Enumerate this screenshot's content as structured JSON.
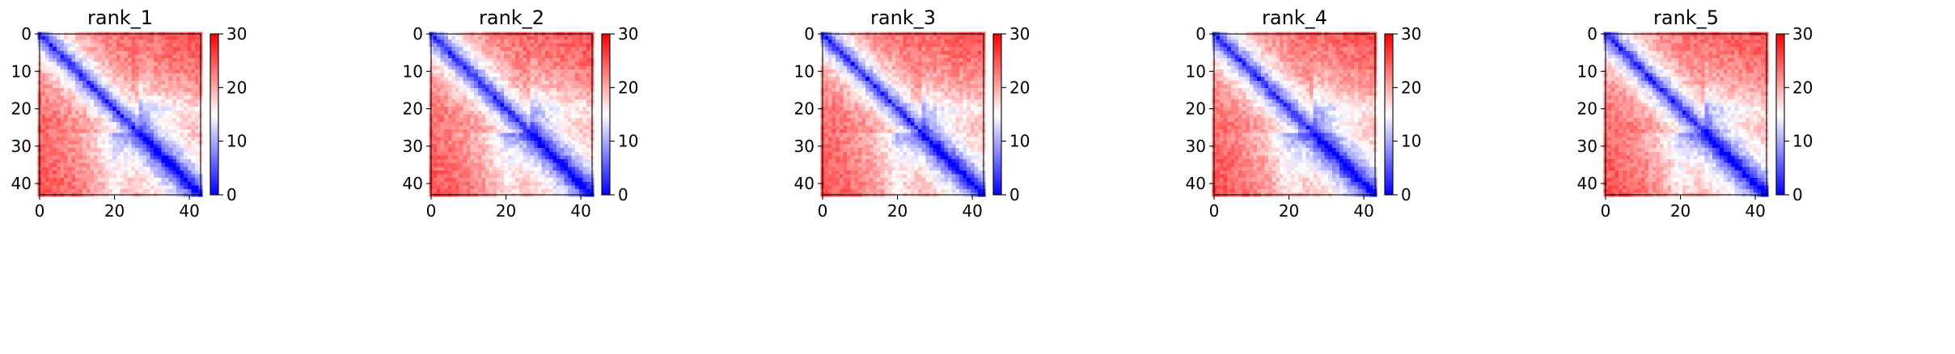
{
  "chart_data": [
    {
      "type": "heatmap",
      "title": "rank_1",
      "matrix_size": 44,
      "band_width": 5.2,
      "block_boundary": 27,
      "xlim": [
        0,
        43
      ],
      "ylim": [
        43,
        0
      ],
      "xticks": [
        0,
        20,
        40
      ],
      "yticks": [
        0,
        10,
        20,
        30,
        40
      ],
      "colorbar": {
        "min": 0,
        "max": 30,
        "ticks": [
          0,
          10,
          20,
          30
        ],
        "colormap": "bwr"
      }
    },
    {
      "type": "heatmap",
      "title": "rank_2",
      "matrix_size": 44,
      "band_width": 5.4,
      "block_boundary": 27,
      "xlim": [
        0,
        43
      ],
      "ylim": [
        43,
        0
      ],
      "xticks": [
        0,
        20,
        40
      ],
      "yticks": [
        0,
        10,
        20,
        30,
        40
      ],
      "colorbar": {
        "min": 0,
        "max": 30,
        "ticks": [
          0,
          10,
          20,
          30
        ],
        "colormap": "bwr"
      }
    },
    {
      "type": "heatmap",
      "title": "rank_3",
      "matrix_size": 44,
      "band_width": 5.0,
      "block_boundary": 27,
      "xlim": [
        0,
        43
      ],
      "ylim": [
        43,
        0
      ],
      "xticks": [
        0,
        20,
        40
      ],
      "yticks": [
        0,
        10,
        20,
        30,
        40
      ],
      "colorbar": {
        "min": 0,
        "max": 30,
        "ticks": [
          0,
          10,
          20,
          30
        ],
        "colormap": "bwr"
      }
    },
    {
      "type": "heatmap",
      "title": "rank_4",
      "matrix_size": 44,
      "band_width": 5.6,
      "block_boundary": 27,
      "xlim": [
        0,
        43
      ],
      "ylim": [
        43,
        0
      ],
      "xticks": [
        0,
        20,
        40
      ],
      "yticks": [
        0,
        10,
        20,
        30,
        40
      ],
      "colorbar": {
        "min": 0,
        "max": 30,
        "ticks": [
          0,
          10,
          20,
          30
        ],
        "colormap": "bwr"
      }
    },
    {
      "type": "heatmap",
      "title": "rank_5",
      "matrix_size": 44,
      "band_width": 5.3,
      "block_boundary": 27,
      "xlim": [
        0,
        43
      ],
      "ylim": [
        43,
        0
      ],
      "xticks": [
        0,
        20,
        40
      ],
      "yticks": [
        0,
        10,
        20,
        30,
        40
      ],
      "colorbar": {
        "min": 0,
        "max": 30,
        "ticks": [
          0,
          10,
          20,
          30
        ],
        "colormap": "bwr"
      }
    }
  ]
}
